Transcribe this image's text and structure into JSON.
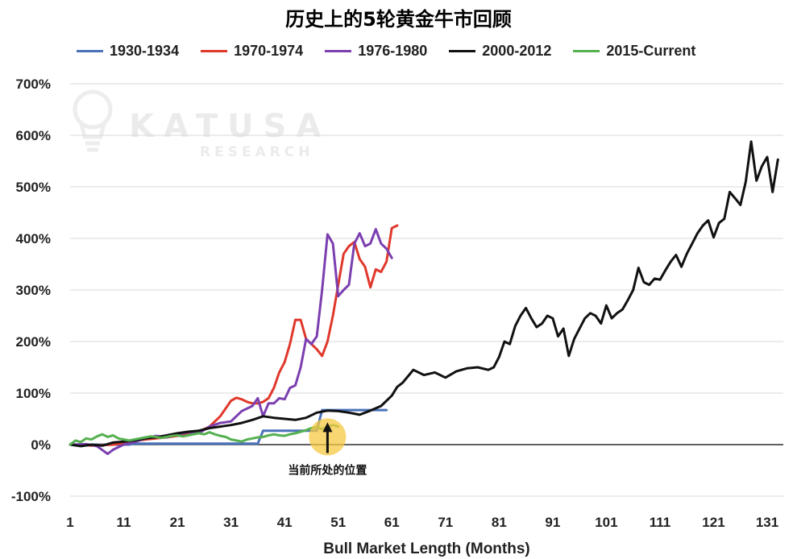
{
  "chart_data": {
    "type": "line",
    "title": "历史上的5轮黄金牛市回顾",
    "xlabel": "Bull Market Length (Months)",
    "ylabel": "",
    "xlim": [
      1,
      134
    ],
    "ylim": [
      -100,
      700
    ],
    "x_ticks": [
      1,
      11,
      21,
      31,
      41,
      51,
      61,
      71,
      81,
      91,
      101,
      111,
      121,
      131
    ],
    "y_ticks": [
      -100,
      0,
      100,
      200,
      300,
      400,
      500,
      600,
      700
    ],
    "y_tick_labels": [
      "-100%",
      "0%",
      "100%",
      "200%",
      "300%",
      "400%",
      "500%",
      "600%",
      "700%"
    ],
    "grid": "horizontal",
    "legend_position": "top",
    "watermark": {
      "main": "KATUSA",
      "sub": "RESEARCH"
    },
    "annotation": {
      "text": "当前所处的位置",
      "x": 49,
      "y": 15
    },
    "series": [
      {
        "name": "1930-1934",
        "color": "#4a72b8",
        "points": [
          [
            1,
            0
          ],
          [
            12,
            0
          ],
          [
            13,
            2
          ],
          [
            36,
            2
          ],
          [
            37,
            27
          ],
          [
            47,
            27
          ],
          [
            48,
            67
          ],
          [
            60,
            67
          ]
        ]
      },
      {
        "name": "1970-1974",
        "color": "#e0382b",
        "points": [
          [
            1,
            0
          ],
          [
            3,
            0
          ],
          [
            5,
            -2
          ],
          [
            7,
            -1
          ],
          [
            9,
            0
          ],
          [
            11,
            3
          ],
          [
            13,
            7
          ],
          [
            15,
            10
          ],
          [
            17,
            12
          ],
          [
            19,
            14
          ],
          [
            21,
            17
          ],
          [
            23,
            20
          ],
          [
            25,
            25
          ],
          [
            27,
            35
          ],
          [
            29,
            55
          ],
          [
            31,
            85
          ],
          [
            32,
            91
          ],
          [
            33,
            88
          ],
          [
            34,
            83
          ],
          [
            35,
            80
          ],
          [
            36,
            80
          ],
          [
            37,
            83
          ],
          [
            38,
            90
          ],
          [
            39,
            110
          ],
          [
            40,
            140
          ],
          [
            41,
            160
          ],
          [
            42,
            195
          ],
          [
            43,
            242
          ],
          [
            44,
            242
          ],
          [
            45,
            205
          ],
          [
            46,
            195
          ],
          [
            47,
            185
          ],
          [
            48,
            172
          ],
          [
            49,
            200
          ],
          [
            50,
            250
          ],
          [
            51,
            310
          ],
          [
            52,
            370
          ],
          [
            53,
            385
          ],
          [
            54,
            393
          ],
          [
            55,
            360
          ],
          [
            56,
            345
          ],
          [
            57,
            305
          ],
          [
            58,
            340
          ],
          [
            59,
            335
          ],
          [
            60,
            355
          ],
          [
            61,
            420
          ],
          [
            62,
            425
          ]
        ]
      },
      {
        "name": "1976-1980",
        "color": "#7b3fb0",
        "points": [
          [
            1,
            0
          ],
          [
            4,
            1
          ],
          [
            6,
            -3
          ],
          [
            8,
            -18
          ],
          [
            9,
            -10
          ],
          [
            11,
            0
          ],
          [
            13,
            5
          ],
          [
            15,
            12
          ],
          [
            17,
            17
          ],
          [
            19,
            14
          ],
          [
            21,
            20
          ],
          [
            23,
            24
          ],
          [
            25,
            22
          ],
          [
            27,
            35
          ],
          [
            29,
            42
          ],
          [
            31,
            45
          ],
          [
            33,
            65
          ],
          [
            35,
            75
          ],
          [
            36,
            90
          ],
          [
            37,
            55
          ],
          [
            38,
            80
          ],
          [
            39,
            80
          ],
          [
            40,
            90
          ],
          [
            41,
            88
          ],
          [
            42,
            110
          ],
          [
            43,
            115
          ],
          [
            44,
            150
          ],
          [
            45,
            205
          ],
          [
            46,
            195
          ],
          [
            47,
            210
          ],
          [
            48,
            300
          ],
          [
            49,
            408
          ],
          [
            50,
            390
          ],
          [
            51,
            288
          ],
          [
            52,
            300
          ],
          [
            53,
            310
          ],
          [
            54,
            390
          ],
          [
            55,
            410
          ],
          [
            56,
            385
          ],
          [
            57,
            390
          ],
          [
            58,
            418
          ],
          [
            59,
            390
          ],
          [
            60,
            380
          ],
          [
            61,
            362
          ]
        ]
      },
      {
        "name": "2000-2012",
        "color": "#111111",
        "points": [
          [
            1,
            0
          ],
          [
            3,
            -3
          ],
          [
            5,
            0
          ],
          [
            7,
            -2
          ],
          [
            9,
            4
          ],
          [
            11,
            6
          ],
          [
            13,
            8
          ],
          [
            15,
            12
          ],
          [
            17,
            14
          ],
          [
            19,
            18
          ],
          [
            21,
            22
          ],
          [
            23,
            25
          ],
          [
            25,
            27
          ],
          [
            27,
            32
          ],
          [
            29,
            35
          ],
          [
            31,
            38
          ],
          [
            33,
            42
          ],
          [
            35,
            48
          ],
          [
            37,
            55
          ],
          [
            39,
            52
          ],
          [
            41,
            50
          ],
          [
            43,
            48
          ],
          [
            45,
            52
          ],
          [
            47,
            62
          ],
          [
            49,
            66
          ],
          [
            51,
            65
          ],
          [
            53,
            62
          ],
          [
            55,
            58
          ],
          [
            57,
            66
          ],
          [
            59,
            75
          ],
          [
            61,
            95
          ],
          [
            62,
            112
          ],
          [
            63,
            120
          ],
          [
            65,
            145
          ],
          [
            67,
            135
          ],
          [
            69,
            140
          ],
          [
            71,
            130
          ],
          [
            73,
            142
          ],
          [
            75,
            148
          ],
          [
            77,
            150
          ],
          [
            79,
            145
          ],
          [
            80,
            150
          ],
          [
            81,
            170
          ],
          [
            82,
            200
          ],
          [
            83,
            195
          ],
          [
            84,
            230
          ],
          [
            85,
            250
          ],
          [
            86,
            265
          ],
          [
            87,
            245
          ],
          [
            88,
            228
          ],
          [
            89,
            235
          ],
          [
            90,
            250
          ],
          [
            91,
            245
          ],
          [
            92,
            210
          ],
          [
            93,
            225
          ],
          [
            94,
            172
          ],
          [
            95,
            205
          ],
          [
            96,
            225
          ],
          [
            97,
            245
          ],
          [
            98,
            255
          ],
          [
            99,
            250
          ],
          [
            100,
            235
          ],
          [
            101,
            270
          ],
          [
            102,
            245
          ],
          [
            103,
            255
          ],
          [
            104,
            262
          ],
          [
            105,
            280
          ],
          [
            106,
            300
          ],
          [
            107,
            343
          ],
          [
            108,
            315
          ],
          [
            109,
            310
          ],
          [
            110,
            322
          ],
          [
            111,
            320
          ],
          [
            112,
            338
          ],
          [
            113,
            355
          ],
          [
            114,
            368
          ],
          [
            115,
            345
          ],
          [
            116,
            370
          ],
          [
            117,
            390
          ],
          [
            118,
            410
          ],
          [
            119,
            425
          ],
          [
            120,
            435
          ],
          [
            121,
            402
          ],
          [
            122,
            430
          ],
          [
            123,
            438
          ],
          [
            124,
            490
          ],
          [
            125,
            478
          ],
          [
            126,
            465
          ],
          [
            127,
            510
          ],
          [
            128,
            588
          ],
          [
            129,
            512
          ],
          [
            130,
            540
          ],
          [
            131,
            558
          ],
          [
            132,
            490
          ],
          [
            133,
            553
          ]
        ]
      },
      {
        "name": "2015-Current",
        "color": "#55b050",
        "points": [
          [
            1,
            0
          ],
          [
            2,
            8
          ],
          [
            3,
            5
          ],
          [
            4,
            12
          ],
          [
            5,
            10
          ],
          [
            6,
            16
          ],
          [
            7,
            20
          ],
          [
            8,
            15
          ],
          [
            9,
            18
          ],
          [
            10,
            12
          ],
          [
            11,
            10
          ],
          [
            12,
            8
          ],
          [
            13,
            10
          ],
          [
            14,
            12
          ],
          [
            15,
            14
          ],
          [
            16,
            16
          ],
          [
            17,
            15
          ],
          [
            18,
            13
          ],
          [
            19,
            15
          ],
          [
            20,
            17
          ],
          [
            21,
            18
          ],
          [
            22,
            16
          ],
          [
            23,
            18
          ],
          [
            24,
            20
          ],
          [
            25,
            22
          ],
          [
            26,
            20
          ],
          [
            27,
            24
          ],
          [
            28,
            20
          ],
          [
            29,
            17
          ],
          [
            30,
            15
          ],
          [
            31,
            10
          ],
          [
            32,
            8
          ],
          [
            33,
            6
          ],
          [
            34,
            10
          ],
          [
            35,
            12
          ],
          [
            36,
            14
          ],
          [
            37,
            15
          ],
          [
            38,
            18
          ],
          [
            39,
            20
          ],
          [
            40,
            18
          ],
          [
            41,
            17
          ],
          [
            42,
            20
          ],
          [
            43,
            22
          ],
          [
            44,
            25
          ],
          [
            45,
            28
          ],
          [
            46,
            32
          ],
          [
            47,
            34
          ],
          [
            48,
            30
          ],
          [
            49,
            35
          ],
          [
            50,
            38
          ],
          [
            51,
            35
          ]
        ]
      }
    ]
  }
}
